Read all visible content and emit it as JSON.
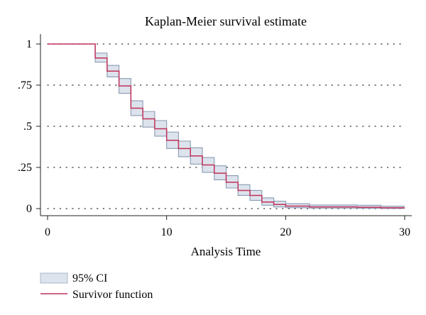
{
  "chart_data": {
    "type": "line",
    "title": "Kaplan-Meier survival estimate",
    "xlabel": "Analysis Time",
    "ylabel": "",
    "xlim": [
      0,
      30
    ],
    "ylim": [
      0,
      1
    ],
    "x_ticks": [
      {
        "value": 0,
        "label": "0"
      },
      {
        "value": 10,
        "label": "10"
      },
      {
        "value": 20,
        "label": "20"
      },
      {
        "value": 30,
        "label": "30"
      }
    ],
    "y_ticks": [
      {
        "value": 0,
        "label": "0"
      },
      {
        "value": 0.25,
        "label": ".25"
      },
      {
        "value": 0.5,
        "label": ".5"
      },
      {
        "value": 0.75,
        "label": ".75"
      },
      {
        "value": 1,
        "label": "1"
      }
    ],
    "grid": "horizontal dotted",
    "legend_position": "bottom-left",
    "series": [
      {
        "name": "Survivor function",
        "step": true,
        "color": "#c0305a",
        "x": [
          0,
          4,
          5,
          6,
          7,
          8,
          9,
          10,
          11,
          12,
          13,
          14,
          15,
          16,
          17,
          18,
          19,
          20,
          22,
          26,
          28,
          30
        ],
        "y": [
          1.0,
          0.915,
          0.835,
          0.745,
          0.61,
          0.545,
          0.485,
          0.415,
          0.365,
          0.32,
          0.265,
          0.215,
          0.16,
          0.11,
          0.08,
          0.04,
          0.025,
          0.015,
          0.01,
          0.008,
          0.005,
          0.005
        ]
      },
      {
        "name": "95% CI",
        "type": "band",
        "step": true,
        "fill": "#dde3ec",
        "stroke": "#8a9bb3",
        "x": [
          0,
          4,
          5,
          6,
          7,
          8,
          9,
          10,
          11,
          12,
          13,
          14,
          15,
          16,
          17,
          18,
          19,
          20,
          22,
          26,
          28,
          30
        ],
        "lower": [
          1.0,
          0.89,
          0.8,
          0.7,
          0.565,
          0.495,
          0.44,
          0.365,
          0.315,
          0.27,
          0.22,
          0.175,
          0.125,
          0.08,
          0.05,
          0.02,
          0.01,
          0.005,
          0.003,
          0.002,
          0.001,
          0.001
        ],
        "upper": [
          1.0,
          0.945,
          0.87,
          0.79,
          0.655,
          0.59,
          0.535,
          0.465,
          0.41,
          0.37,
          0.31,
          0.26,
          0.2,
          0.145,
          0.11,
          0.065,
          0.045,
          0.03,
          0.022,
          0.02,
          0.015,
          0.015
        ]
      }
    ],
    "legend": [
      {
        "label": "95% CI",
        "kind": "band"
      },
      {
        "label": "Survivor function",
        "kind": "line"
      }
    ]
  }
}
